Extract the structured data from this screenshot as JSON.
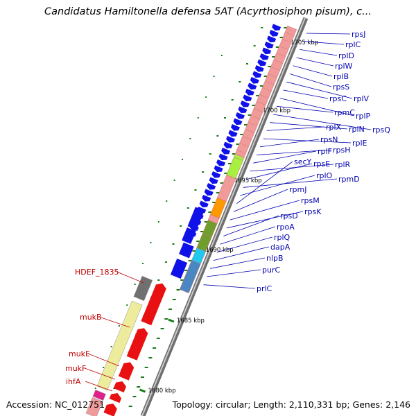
{
  "title": "Candidatus Hamiltonella defensa 5AT (Acyrthosiphon pisum), c...",
  "accession": "Accession: NC_012751",
  "topology": "Topology: circular; Length: 2,110,331 bp; Genes: 2,146",
  "colors": {
    "backbone": "#8a8a8a",
    "tick": "#1a7a1a",
    "gene_forward": "#e81010",
    "gene_reverse": "#1010e8",
    "cog_pink": "#f09a9a",
    "cog_yellow": "#ecec9c",
    "cog_green": "#a8f040",
    "cog_orange": "#ff9900",
    "cog_olive": "#6f9e2e",
    "cog_cyan": "#20c8f0",
    "cog_steelblue": "#4a86c2",
    "cog_magenta": "#e0208c",
    "cog_gray": "#707070",
    "label_blue": "#0000b0",
    "label_red": "#c00000"
  },
  "kbp_labels": [
    "1705 kbp",
    "1700 kbp",
    "1695 kbp",
    "1690 kbp",
    "1685 kbp",
    "1680 kbp"
  ],
  "right_labels": [
    "rpsJ",
    "rplC",
    "rplD",
    "rplW",
    "rplB",
    "rpsS",
    "rplV",
    "rpsC",
    "rplP",
    "rpmC",
    "rpsQ",
    "rplN",
    "rplX",
    "rplE",
    "rpsN",
    "rpsH",
    "rplF",
    "rplR",
    "rpsE",
    "rpmD",
    "rplO",
    "secY",
    "rpmJ",
    "rpsM",
    "rpsK",
    "rpsD",
    "rpoA",
    "rplQ",
    "dapA",
    "nlpB",
    "purC",
    "prlC"
  ],
  "left_labels": [
    "HDEF_1835",
    "mukB",
    "mukE",
    "mukF",
    "ihfA"
  ]
}
